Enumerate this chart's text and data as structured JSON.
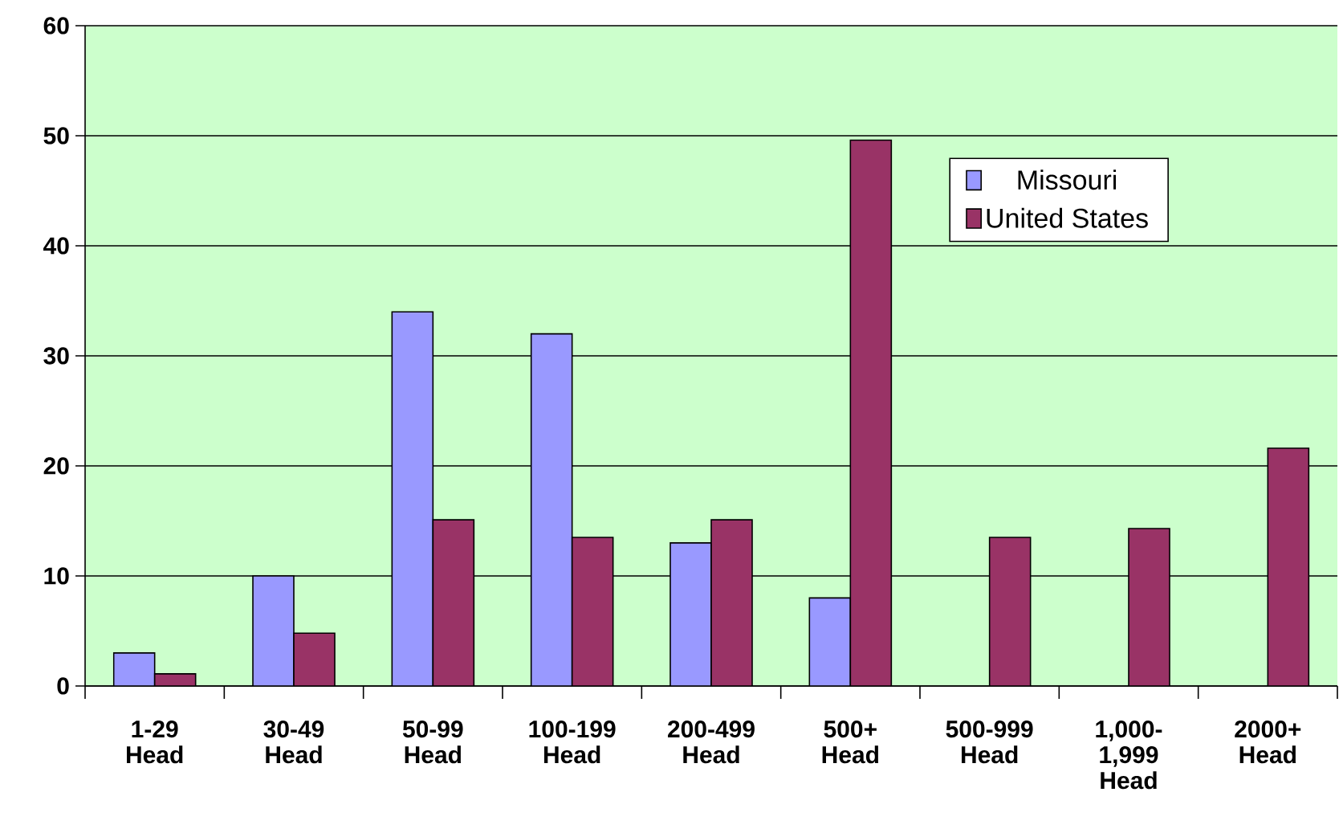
{
  "chart_data": {
    "type": "bar",
    "categories": [
      "1-29 Head",
      "30-49 Head",
      "50-99 Head",
      "100-199 Head",
      "200-499 Head",
      "500+ Head",
      "500-999 Head",
      "1,000-1,999 Head",
      "2000+ Head"
    ],
    "series": [
      {
        "name": "Missouri",
        "color": "#9999ff",
        "values": [
          3,
          10,
          34,
          32,
          13,
          8,
          null,
          null,
          null
        ]
      },
      {
        "name": "United States",
        "color": "#993366",
        "values": [
          1.1,
          4.8,
          15.1,
          13.5,
          15.1,
          49.6,
          13.5,
          14.3,
          21.6
        ]
      }
    ],
    "ylim": [
      0,
      60
    ],
    "yticks": [
      0,
      10,
      20,
      30,
      40,
      50,
      60
    ],
    "grid": "y",
    "legend": "top right"
  }
}
